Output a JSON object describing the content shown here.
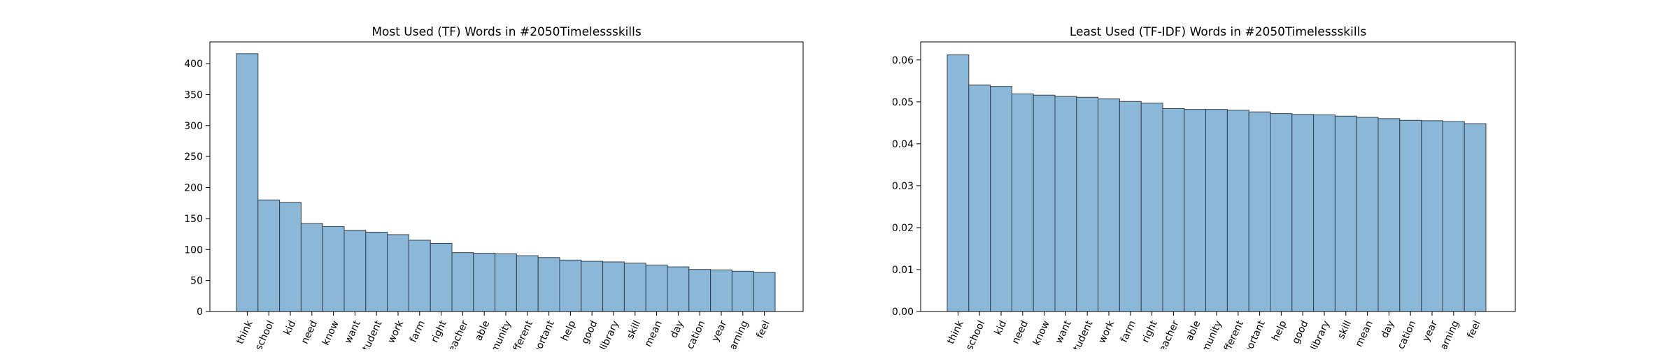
{
  "chart_data": [
    {
      "type": "bar",
      "title": "Most Used (TF) Words in #2050Timelessskills",
      "xlabel": "",
      "ylabel": "",
      "categories": [
        "think",
        "school",
        "kid",
        "need",
        "know",
        "want",
        "student",
        "work",
        "farm",
        "right",
        "teacher",
        "able",
        "community",
        "different",
        "important",
        "help",
        "good",
        "library",
        "skill",
        "mean",
        "day",
        "education",
        "year",
        "learning",
        "feel"
      ],
      "tick_labels": [
        "think",
        "school",
        "kid",
        "need",
        "know",
        "want",
        "tudent",
        "work",
        "farm",
        "right",
        "eacher",
        "able",
        "munity",
        "fferent",
        "portant",
        "help",
        "good",
        "library",
        "skill",
        "mean",
        "day",
        "cation",
        "year",
        "arning",
        "feel"
      ],
      "values": [
        416,
        180,
        176,
        142,
        137,
        131,
        128,
        124,
        115,
        110,
        95,
        94,
        93,
        90,
        87,
        83,
        81,
        80,
        78,
        75,
        72,
        68,
        67,
        65,
        63
      ],
      "ylim": [
        0,
        435
      ],
      "yticks": [
        0,
        50,
        100,
        150,
        200,
        250,
        300,
        350,
        400
      ],
      "ytick_labels": [
        "0",
        "50",
        "100",
        "150",
        "200",
        "250",
        "300",
        "350",
        "400"
      ],
      "grid": false,
      "colors": {
        "bar_fill": "#8bb8d9",
        "bar_edge": "#333f4b"
      }
    },
    {
      "type": "bar",
      "title": "Least Used (TF-IDF) Words in #2050Timelessskills",
      "xlabel": "",
      "ylabel": "",
      "categories": [
        "think",
        "school",
        "kid",
        "need",
        "know",
        "want",
        "student",
        "work",
        "farm",
        "right",
        "teacher",
        "able",
        "community",
        "different",
        "important",
        "help",
        "good",
        "library",
        "skill",
        "mean",
        "day",
        "education",
        "year",
        "learning",
        "feel"
      ],
      "tick_labels": [
        "think",
        "school",
        "kid",
        "need",
        "know",
        "want",
        "tudent",
        "work",
        "farm",
        "right",
        "eacher",
        "able",
        "munity",
        "fferent",
        "portant",
        "help",
        "good",
        "library",
        "skill",
        "mean",
        "day",
        "cation",
        "year",
        "arning",
        "feel"
      ],
      "values": [
        0.0612,
        0.054,
        0.0537,
        0.0519,
        0.0516,
        0.0513,
        0.0511,
        0.0507,
        0.0501,
        0.0497,
        0.0484,
        0.0482,
        0.0482,
        0.048,
        0.0476,
        0.0472,
        0.047,
        0.0469,
        0.0466,
        0.0463,
        0.046,
        0.0456,
        0.0455,
        0.0453,
        0.0448
      ],
      "ylim": [
        0,
        0.0643
      ],
      "yticks": [
        0,
        0.01,
        0.02,
        0.03,
        0.04,
        0.05,
        0.06
      ],
      "ytick_labels": [
        "0.00",
        "0.01",
        "0.02",
        "0.03",
        "0.04",
        "0.05",
        "0.06"
      ],
      "grid": false,
      "colors": {
        "bar_fill": "#8bb8d9",
        "bar_edge": "#333f4b"
      }
    }
  ]
}
